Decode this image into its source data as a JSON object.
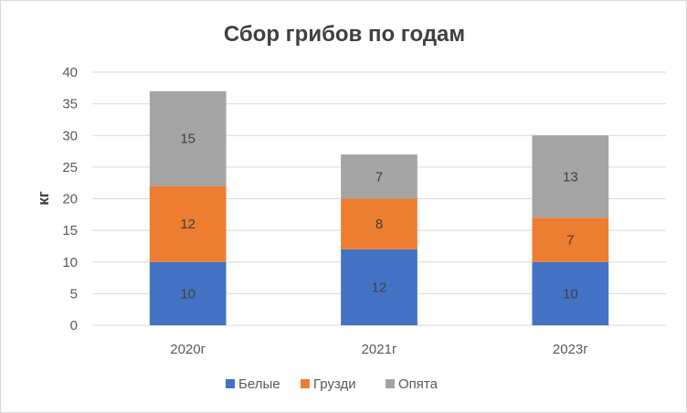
{
  "chart_data": {
    "type": "bar",
    "stacked": true,
    "title": "Сбор  грибов по годам",
    "xlabel": "",
    "ylabel": "кг",
    "ylim": [
      0,
      40
    ],
    "yticks": [
      "0",
      "5",
      "10",
      "15",
      "20",
      "25",
      "30",
      "35",
      "40"
    ],
    "grid": true,
    "legend_position": "bottom",
    "categories": [
      "2020г",
      "2021г",
      "2023г"
    ],
    "series": [
      {
        "name": "Белые",
        "color": "#4472c4",
        "values": [
          10,
          12,
          10
        ]
      },
      {
        "name": "Грузди",
        "color": "#ed7d31",
        "values": [
          12,
          8,
          7
        ]
      },
      {
        "name": "Опята",
        "color": "#a5a5a5",
        "values": [
          15,
          7,
          13
        ]
      }
    ]
  }
}
